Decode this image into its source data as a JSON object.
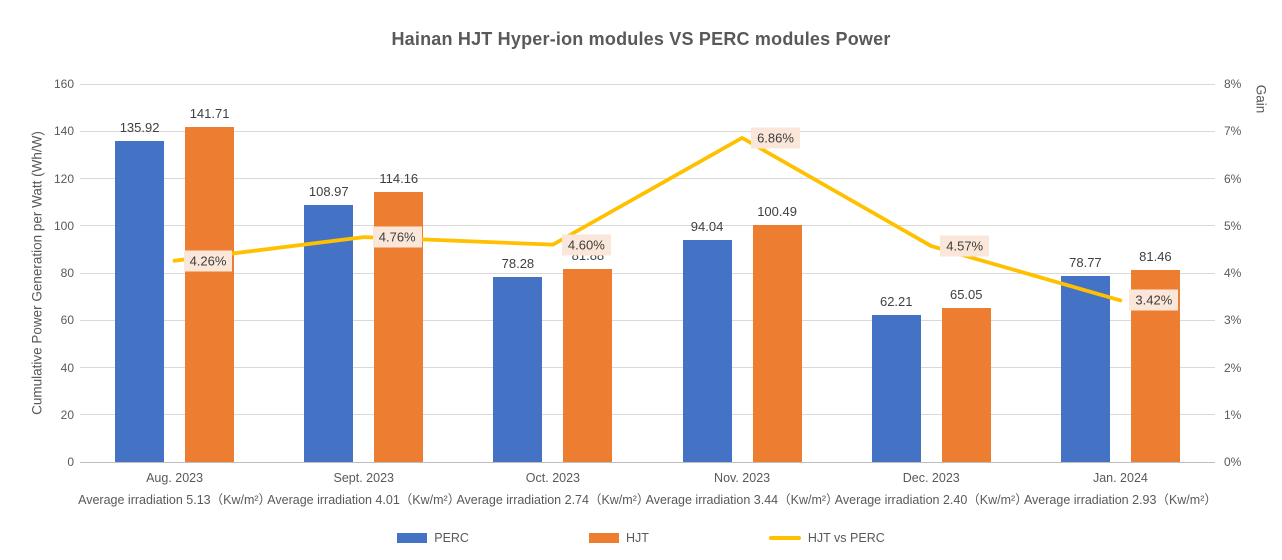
{
  "title": "Hainan HJT Hyper-ion modules VS PERC modules Power",
  "chart_data": {
    "type": "bar",
    "subtype": "grouped bars with secondary-axis line",
    "categories": [
      "Aug. 2023",
      "Sept. 2023",
      "Oct. 2023",
      "Nov. 2023",
      "Dec. 2023",
      "Jan. 2024"
    ],
    "category_sublabels": [
      "Average irradiation 5.13（Kw/m²）",
      "Average irradiation 4.01（Kw/m²）",
      "Average irradiation 2.74（Kw/m²）",
      "Average irradiation 3.44（Kw/m²）",
      "Average irradiation 2.40（Kw/m²）",
      "Average irradiation 2.93（Kw/m²）"
    ],
    "series": [
      {
        "name": "PERC",
        "type": "bar",
        "color": "#4472C4",
        "values": [
          135.92,
          108.97,
          78.28,
          94.04,
          62.21,
          78.77
        ],
        "value_labels": [
          "135.92",
          "108.97",
          "78.28",
          "94.04",
          "62.21",
          "78.77"
        ]
      },
      {
        "name": "HJT",
        "type": "bar",
        "color": "#ED7D31",
        "values": [
          141.71,
          114.16,
          81.88,
          100.49,
          65.05,
          81.46
        ],
        "value_labels": [
          "141.71",
          "114.16",
          "81.88",
          "100.49",
          "65.05",
          "81.46"
        ]
      },
      {
        "name": "HJT vs PERC",
        "type": "line",
        "axis": "right",
        "color": "#FFC000",
        "values": [
          4.26,
          4.76,
          4.6,
          6.86,
          4.57,
          3.42
        ],
        "value_labels": [
          "4.26%",
          "4.76%",
          "4.60%",
          "6.86%",
          "4.57%",
          "3.42%"
        ],
        "label_background": "#FAE7D9"
      }
    ],
    "left_axis": {
      "label": "Cumulative Power Generation per Watt (Wh/W)",
      "min": 0,
      "max": 160,
      "step": 20,
      "ticks": [
        "0",
        "20",
        "40",
        "60",
        "80",
        "100",
        "120",
        "140",
        "160"
      ]
    },
    "right_axis": {
      "label": "Gain",
      "min": 0,
      "max": 8,
      "step": 1,
      "ticks": [
        "0%",
        "1%",
        "2%",
        "3%",
        "4%",
        "5%",
        "6%",
        "7%",
        "8%"
      ]
    },
    "grid": true,
    "legend_position": "bottom",
    "legend": [
      "PERC",
      "HJT",
      "HJT vs PERC"
    ]
  },
  "colors": {
    "background": "#ffffff",
    "title_text": "#595959",
    "axis_text": "#595959",
    "value_label_text": "#404040",
    "gridline": "#d9d9d9",
    "perc_bar": "#4472C4",
    "hjt_bar": "#ED7D31",
    "gain_line": "#FFC000",
    "gain_label_bg": "#FAE7D9"
  }
}
